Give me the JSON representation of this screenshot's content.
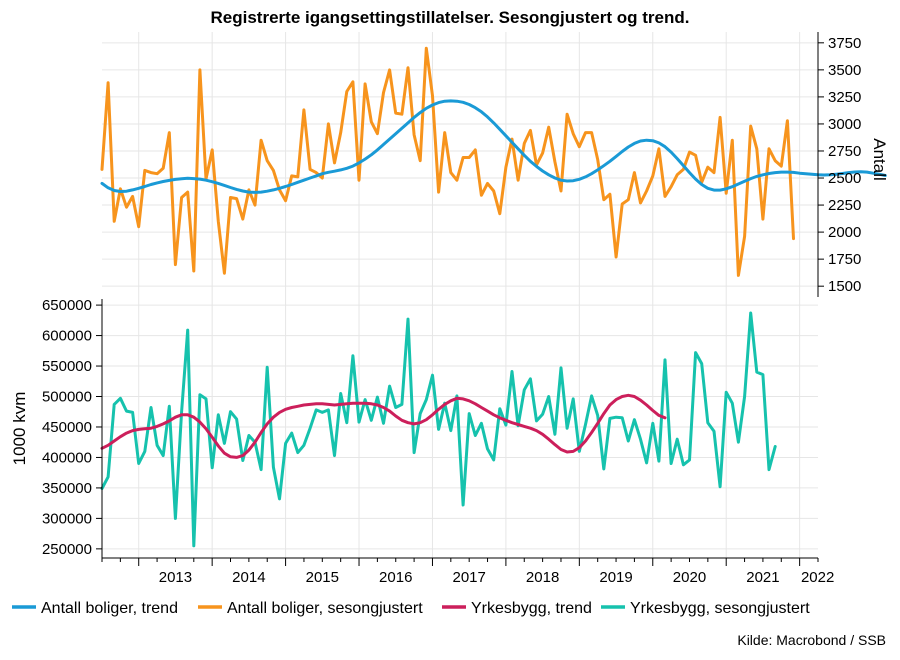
{
  "chart_data": {
    "type": "line",
    "title": "Registrerte igangsettingstillatelser. Sesongjustert og trend.",
    "source": "Kilde: Macrobond / SSB",
    "x_tick_labels": [
      "2013",
      "2014",
      "2015",
      "2016",
      "2017",
      "2018",
      "2019",
      "2020",
      "2021",
      "2022"
    ],
    "legend_placement": "bottom",
    "colors": {
      "boliger_trend": "#1a9ad6",
      "boliger_sa": "#f7941d",
      "yrkesbygg_trend": "#cc1f5b",
      "yrkesbygg_sa": "#16c2ad",
      "grid": "#e6e6e6",
      "axis": "#000000"
    },
    "grid": true,
    "panels": [
      {
        "name": "top",
        "ylabel": "Antall",
        "y_axis_side": "right",
        "ylim": [
          1400,
          3850
        ],
        "yticks": [
          1500,
          1750,
          2000,
          2250,
          2500,
          2750,
          3000,
          3250,
          3500,
          3750
        ],
        "x_start": "2012-07",
        "series": [
          {
            "name": "Antall boliger, trend",
            "color_key": "boliger_trend",
            "width": 3,
            "values": [
              2450,
              2410,
              2385,
              2375,
              2378,
              2390,
              2405,
              2422,
              2440,
              2455,
              2468,
              2478,
              2487,
              2494,
              2497,
              2495,
              2490,
              2480,
              2466,
              2450,
              2432,
              2412,
              2395,
              2380,
              2370,
              2367,
              2370,
              2378,
              2390,
              2405,
              2422,
              2440,
              2460,
              2480,
              2500,
              2520,
              2540,
              2553,
              2563,
              2575,
              2590,
              2610,
              2640,
              2675,
              2715,
              2760,
              2810,
              2860,
              2910,
              2960,
              3010,
              3060,
              3105,
              3145,
              3175,
              3197,
              3210,
              3213,
              3210,
              3200,
              3180,
              3150,
              3112,
              3065,
              3010,
              2950,
              2890,
              2830,
              2770,
              2710,
              2655,
              2607,
              2565,
              2530,
              2500,
              2480,
              2472,
              2475,
              2488,
              2510,
              2540,
              2575,
              2614,
              2655,
              2700,
              2745,
              2787,
              2820,
              2842,
              2850,
              2845,
              2825,
              2790,
              2740,
              2680,
              2615,
              2550,
              2490,
              2440,
              2405,
              2388,
              2388,
              2400,
              2420,
              2445,
              2470,
              2495,
              2515,
              2530,
              2542,
              2550,
              2555,
              2555,
              2552,
              2545,
              2540,
              2535,
              2530,
              2528,
              2530,
              2535,
              2542,
              2550,
              2556,
              2558,
              2555,
              2545,
              2535,
              2523
            ]
          },
          {
            "name": "Antall boliger, sesongjustert",
            "color_key": "boliger_sa",
            "width": 3,
            "values": [
              2580,
              3380,
              2100,
              2400,
              2230,
              2330,
              2050,
              2570,
              2550,
              2540,
              2590,
              2920,
              1700,
              2320,
              2370,
              1640,
              3500,
              2490,
              2760,
              2100,
              1620,
              2320,
              2310,
              2120,
              2390,
              2250,
              2850,
              2660,
              2570,
              2390,
              2290,
              2520,
              2510,
              3130,
              2580,
              2550,
              2500,
              3000,
              2640,
              2920,
              3300,
              3390,
              2480,
              3370,
              3020,
              2910,
              3290,
              3500,
              3100,
              3090,
              3520,
              2900,
              2660,
              3700,
              3260,
              2370,
              2920,
              2550,
              2480,
              2690,
              2690,
              2760,
              2340,
              2450,
              2380,
              2170,
              2600,
              2860,
              2480,
              2820,
              2940,
              2620,
              2730,
              2970,
              2650,
              2380,
              3090,
              2910,
              2790,
              2920,
              2920,
              2670,
              2300,
              2350,
              1770,
              2260,
              2300,
              2550,
              2270,
              2380,
              2520,
              2770,
              2330,
              2420,
              2530,
              2580,
              2740,
              2710,
              2460,
              2600,
              2550,
              3060,
              2360,
              2850,
              1600,
              1960,
              2980,
              2770,
              2120,
              2770,
              2660,
              2610,
              3030,
              1940
            ]
          }
        ]
      },
      {
        "name": "bottom",
        "ylabel": "1000 kvm",
        "y_axis_side": "left",
        "ylim": [
          235000,
          660000
        ],
        "yticks": [
          250000,
          300000,
          350000,
          400000,
          450000,
          500000,
          550000,
          600000,
          650000
        ],
        "x_start": "2012-07",
        "series": [
          {
            "name": "Yrkesbygg, trend",
            "color_key": "yrkesbygg_trend",
            "width": 3,
            "values": [
              415000,
              420000,
              427000,
              434000,
              440000,
              444000,
              446000,
              447000,
              448000,
              451000,
              455000,
              460000,
              466000,
              470000,
              470000,
              466000,
              458000,
              447000,
              433000,
              419000,
              407000,
              401000,
              400000,
              403000,
              412000,
              425000,
              441000,
              455000,
              466000,
              474000,
              479000,
              482000,
              484000,
              486000,
              487000,
              488000,
              488000,
              487000,
              486000,
              487000,
              488000,
              489000,
              489000,
              489000,
              488000,
              486000,
              482000,
              476000,
              468000,
              461000,
              457000,
              455000,
              457000,
              462000,
              470000,
              479000,
              487000,
              493000,
              497000,
              496000,
              493000,
              488000,
              482000,
              476000,
              470000,
              465000,
              461000,
              457000,
              454000,
              451000,
              448000,
              444000,
              438000,
              430000,
              421000,
              413000,
              409000,
              410000,
              416000,
              427000,
              441000,
              456000,
              472000,
              486000,
              495000,
              500000,
              502000,
              500000,
              494000,
              486000,
              477000,
              469000,
              465000
            ]
          },
          {
            "name": "Yrkesbygg, sesongjustert",
            "color_key": "yrkesbygg_sa",
            "width": 3,
            "values": [
              349000,
              368000,
              487000,
              497000,
              476000,
              474000,
              390000,
              410000,
              482000,
              420000,
              403000,
              484000,
              300000,
              475000,
              609000,
              255000,
              503000,
              496000,
              383000,
              470000,
              423000,
              475000,
              463000,
              395000,
              436000,
              425000,
              380000,
              548000,
              384000,
              332000,
              423000,
              440000,
              408000,
              420000,
              448000,
              478000,
              474000,
              478000,
              403000,
              505000,
              457000,
              567000,
              458000,
              495000,
              461000,
              499000,
              456000,
              517000,
              482000,
              487000,
              627000,
              408000,
              472000,
              495000,
              535000,
              446000,
              489000,
              444000,
              501000,
              322000,
              472000,
              436000,
              456000,
              414000,
              396000,
              480000,
              453000,
              541000,
              452000,
              511000,
              529000,
              460000,
              471000,
              500000,
              438000,
              547000,
              448000,
              496000,
              410000,
              454000,
              501000,
              469000,
              381000,
              464000,
              466000,
              465000,
              427000,
              462000,
              430000,
              391000,
              456000,
              394000,
              560000,
              390000,
              430000,
              388000,
              396000,
              572000,
              554000,
              457000,
              443000,
              352000,
              507000,
              489000,
              425000,
              500000,
              637000,
              540000,
              536000,
              380000,
              418000
            ]
          }
        ]
      }
    ]
  }
}
